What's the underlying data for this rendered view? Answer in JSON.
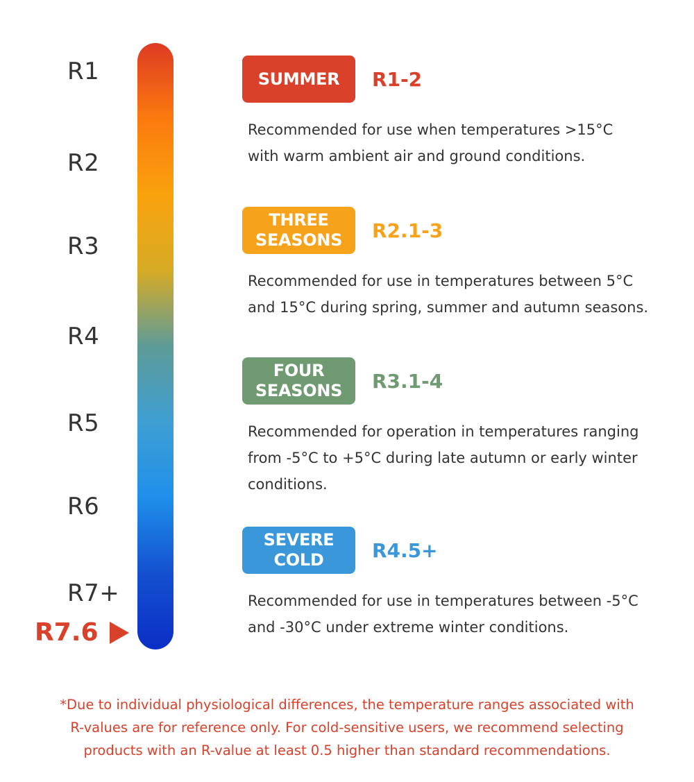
{
  "scale": {
    "labels": [
      "R1",
      "R2",
      "R3",
      "R4",
      "R5",
      "R6",
      "R7+"
    ],
    "highlight": {
      "label": "R7.6",
      "color": "#d9412a"
    },
    "gradient_colors": [
      "#dd3b22",
      "#fb7a0f",
      "#f9a20c",
      "#d7ab25",
      "#5e9b98",
      "#3e9fd2",
      "#1f8fea",
      "#1450d0",
      "#0b2fc5"
    ]
  },
  "sections": [
    {
      "badge": "SUMMER",
      "range": "R1-2",
      "description": "Recommended for use when temperatures >15°C\nwith warm ambient air and ground conditions.",
      "badge_color": "#d9412a",
      "range_color": "#d9412a"
    },
    {
      "badge": "THREE\nSEASONS",
      "range": "R2.1-3",
      "description": "Recommended for use in temperatures between 5°C\nand 15°C during spring, summer and autumn seasons.",
      "badge_color": "#f6a21b",
      "range_color": "#f6a21b"
    },
    {
      "badge": "FOUR\nSEASONS",
      "range": "R3.1-4",
      "description": "Recommended for operation in temperatures ranging\nfrom -5°C to +5°C during late autumn or early winter\nconditions.",
      "badge_color": "#6f9a72",
      "range_color": "#6f9a72"
    },
    {
      "badge": "SEVERE\nCOLD",
      "range": "R4.5+",
      "description": "Recommended for use in temperatures between -5°C\nand -30°C under extreme winter conditions.",
      "badge_color": "#3a98da",
      "range_color": "#3a98da"
    }
  ],
  "footnote": {
    "text": "*Due to individual physiological differences, the temperature ranges associated with\nR-values are for reference only. For cold-sensitive users, we recommend selecting\nproducts with an R-value at least 0.5 higher than standard recommendations.",
    "color": "#d9412a"
  }
}
